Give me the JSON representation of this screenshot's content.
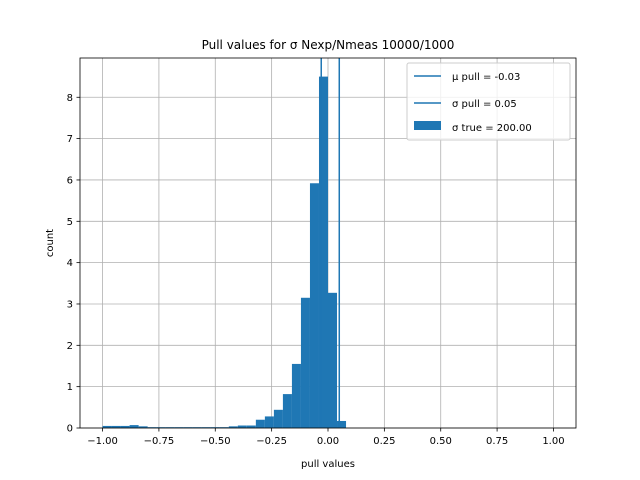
{
  "chart_data": {
    "type": "bar",
    "title": "Pull values for σ Nexp/Nmeas 10000/1000",
    "xlabel": "pull values",
    "ylabel": "count",
    "xlim": [
      -1.1,
      1.1
    ],
    "ylim": [
      0,
      8.95
    ],
    "xticks": [
      "−1.00",
      "−0.75",
      "−0.50",
      "−0.25",
      "0.00",
      "0.25",
      "0.50",
      "0.75",
      "1.00"
    ],
    "xtick_values": [
      -1.0,
      -0.75,
      -0.5,
      -0.25,
      0.0,
      0.25,
      0.5,
      0.75,
      1.0
    ],
    "yticks": [
      "0",
      "1",
      "2",
      "3",
      "4",
      "5",
      "6",
      "7",
      "8"
    ],
    "ytick_values": [
      0,
      1,
      2,
      3,
      4,
      5,
      6,
      7,
      8
    ],
    "grid": true,
    "legend_position": "top-right",
    "bar_color": "#1f77b4",
    "line_color": "#1f77b4",
    "histogram": {
      "bin_start": -1.0,
      "bin_width": 0.04,
      "counts": [
        0.05,
        0.05,
        0.05,
        0.07,
        0.04,
        0.02,
        0.02,
        0.02,
        0.02,
        0.02,
        0.02,
        0.02,
        0.02,
        0.02,
        0.04,
        0.06,
        0.06,
        0.2,
        0.28,
        0.44,
        0.82,
        1.55,
        3.15,
        5.92,
        8.5,
        3.27,
        0.17
      ]
    },
    "vlines": [
      {
        "x": -0.03,
        "label": "μ pull = -0.03"
      },
      {
        "x": 0.05,
        "label": "σ pull = 0.05"
      }
    ],
    "bar_legend_label": "σ true = 200.00"
  }
}
